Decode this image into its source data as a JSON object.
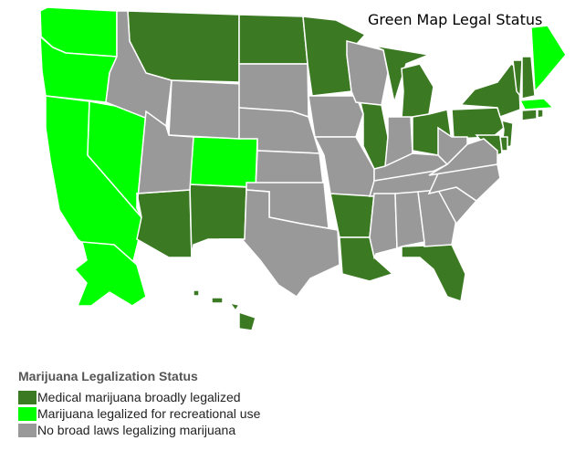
{
  "title": "Green Map Legal Status",
  "colors": {
    "medical": "#3b7a23",
    "recreational": "#00ff00",
    "none": "#999999",
    "border": "#ffffff"
  },
  "legend": {
    "title": "Marijuana Legalization Status",
    "items": [
      {
        "key": "medical",
        "label": "Medical marijuana broadly legalized"
      },
      {
        "key": "recreational",
        "label": "Marijuana legalized for recreational use"
      },
      {
        "key": "none",
        "label": "No broad laws legalizing marijuana"
      }
    ]
  },
  "states": {
    "WA": "recreational",
    "OR": "recreational",
    "CA": "recreational",
    "NV": "recreational",
    "CO": "recreational",
    "AK": "recreational",
    "ME": "recreational",
    "MA": "recreational",
    "MT": "medical",
    "ND": "medical",
    "MN": "medical",
    "AZ": "medical",
    "NM": "medical",
    "AR": "medical",
    "LA": "medical",
    "IL": "medical",
    "MI": "medical",
    "OH": "medical",
    "FL": "medical",
    "PA": "medical",
    "NY": "medical",
    "VT": "medical",
    "NH": "medical",
    "NJ": "medical",
    "MD": "medical",
    "DE": "medical",
    "CT": "medical",
    "RI": "medical",
    "HI": "medical",
    "ID": "none",
    "WY": "none",
    "UT": "none",
    "SD": "none",
    "NE": "none",
    "KS": "none",
    "OK": "none",
    "TX": "none",
    "IA": "none",
    "MO": "none",
    "WI": "none",
    "IN": "none",
    "KY": "none",
    "TN": "none",
    "MS": "none",
    "AL": "none",
    "GA": "none",
    "SC": "none",
    "NC": "none",
    "VA": "none",
    "WV": "none"
  }
}
